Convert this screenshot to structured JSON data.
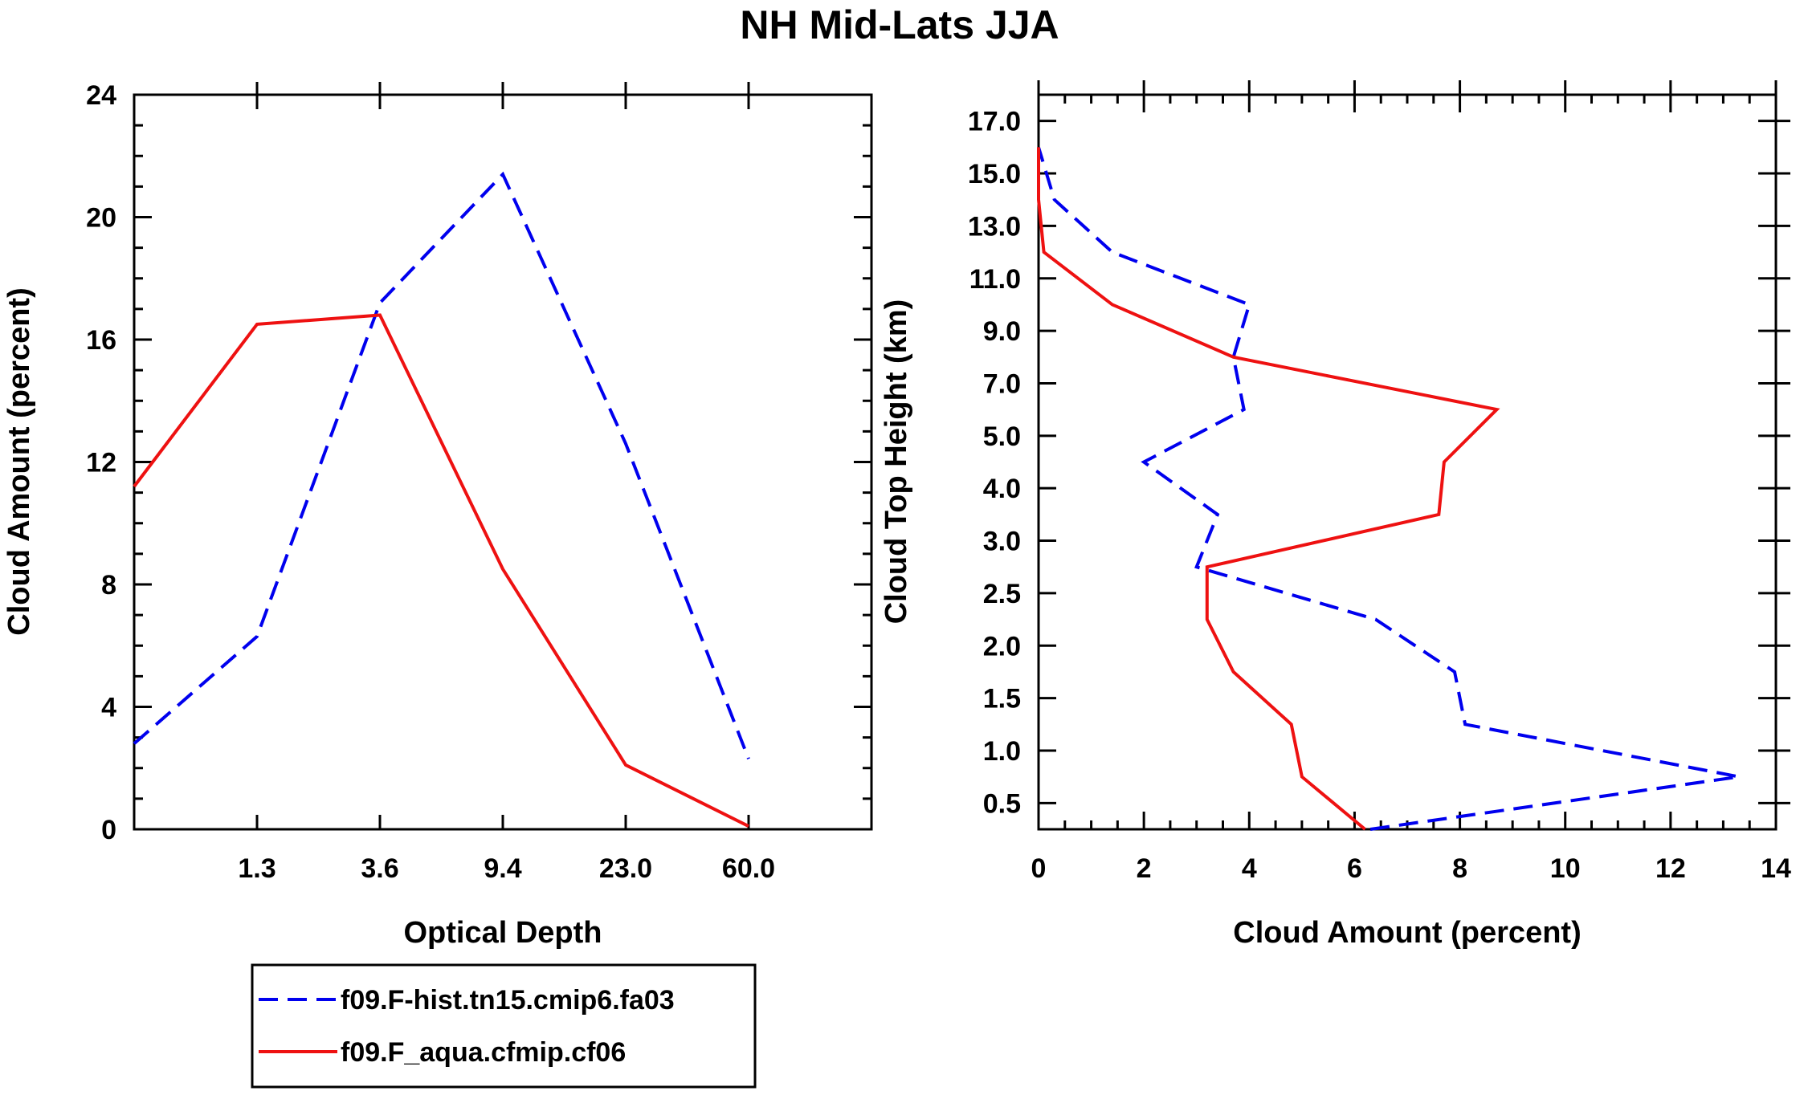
{
  "title": "NH Mid-Lats JJA",
  "colors": {
    "series_blue": "#0000ee",
    "series_red": "#ee1111",
    "axis": "#000000"
  },
  "legend": {
    "placement": "below-left",
    "entries": [
      {
        "label": "f09.F-hist.tn15.cmip6.fa03",
        "style": "dashed",
        "color": "#0000ee"
      },
      {
        "label": "f09.F_aqua.cfmip.cf06",
        "style": "solid",
        "color": "#ee1111"
      }
    ]
  },
  "chart_data": [
    {
      "type": "line",
      "title": "",
      "xlabel": "Optical Depth",
      "ylabel": "Cloud Amount (percent)",
      "x_bins": [
        0,
        1,
        2,
        3,
        4,
        5,
        6
      ],
      "x_tick_labels": [
        "1.3",
        "3.6",
        "9.4",
        "23.0",
        "60.0"
      ],
      "y_tick_labels": [
        "0",
        "4",
        "8",
        "12",
        "16",
        "20",
        "24"
      ],
      "ylim": [
        0,
        24
      ],
      "series": [
        {
          "name": "f09.F-hist.tn15.cmip6.fa03",
          "style": "dashed",
          "values": [
            2.8,
            6.3,
            17.2,
            21.4,
            12.6,
            2.3
          ]
        },
        {
          "name": "f09.F_aqua.cfmip.cf06",
          "style": "solid",
          "values": [
            11.2,
            16.5,
            16.8,
            8.5,
            2.1,
            0.1
          ]
        }
      ]
    },
    {
      "type": "line",
      "title": "",
      "xlabel": "Cloud Amount (percent)",
      "ylabel": "Cloud Top Height (km)",
      "xlim": [
        0,
        14
      ],
      "x_tick_labels": [
        "0",
        "2",
        "4",
        "6",
        "8",
        "10",
        "12",
        "14"
      ],
      "y_tick_labels": [
        "0.5",
        "1.0",
        "1.5",
        "2.0",
        "2.5",
        "3.0",
        "4.0",
        "5.0",
        "7.0",
        "9.0",
        "11.0",
        "13.0",
        "15.0",
        "17.0"
      ],
      "levels": [
        0.25,
        0.75,
        1.25,
        1.75,
        2.25,
        2.75,
        3.5,
        4.5,
        6.0,
        8.0,
        10.0,
        12.0,
        14.0,
        16.0
      ],
      "series": [
        {
          "name": "f09.F-hist.tn15.cmip6.fa03",
          "style": "dashed",
          "values": [
            6.3,
            13.3,
            8.1,
            7.9,
            6.4,
            3.0,
            3.4,
            2.0,
            3.9,
            3.7,
            4.0,
            1.4,
            0.3,
            0.0
          ]
        },
        {
          "name": "f09.F_aqua.cfmip.cf06",
          "style": "solid",
          "values": [
            6.2,
            5.0,
            4.8,
            3.7,
            3.2,
            3.2,
            7.6,
            7.7,
            8.7,
            3.7,
            1.4,
            0.1,
            0.0,
            0.0
          ]
        }
      ]
    }
  ]
}
